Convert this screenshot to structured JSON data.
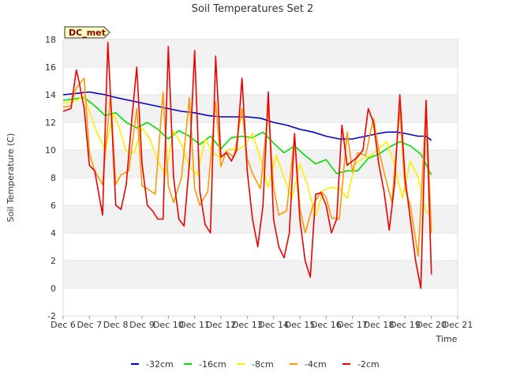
{
  "chart_data": {
    "type": "line",
    "title": "Soil Temperatures Set 2",
    "xlabel": "Time",
    "ylabel": "Soil Temperature (C)",
    "badge": "DC_met",
    "xlim": [
      6,
      21
    ],
    "ylim": [
      -2,
      18
    ],
    "x_ticks": [
      6,
      7,
      8,
      9,
      10,
      11,
      12,
      13,
      14,
      15,
      16,
      17,
      18,
      19,
      20,
      21
    ],
    "x_tick_labels": [
      "Dec 6",
      "Dec 7",
      "Dec 8",
      "Dec 9",
      "Dec 10",
      "Dec 11",
      "Dec 12",
      "Dec 13",
      "Dec 14",
      "Dec 15",
      "Dec 16",
      "Dec 17",
      "Dec 18",
      "Dec 19",
      "Dec 20",
      "Dec 21"
    ],
    "y_ticks": [
      -2,
      0,
      2,
      4,
      6,
      8,
      10,
      12,
      14,
      16,
      18
    ],
    "y_tick_labels": [
      "-2",
      "0",
      "2",
      "4",
      "6",
      "8",
      "10",
      "12",
      "14",
      "16",
      "18"
    ],
    "grid": "horizontal bands",
    "legend_position": "bottom",
    "series": [
      {
        "name": "-32cm",
        "color": "#0000cc",
        "x": [
          6.0,
          6.5,
          7.0,
          7.3,
          7.6,
          8.0,
          8.5,
          9.0,
          9.5,
          10.0,
          10.5,
          11.0,
          11.5,
          12.0,
          12.5,
          13.0,
          13.5,
          14.0,
          14.5,
          15.0,
          15.5,
          16.0,
          16.5,
          17.0,
          17.5,
          18.0,
          18.3,
          18.7,
          19.0,
          19.5,
          19.8,
          20.0
        ],
        "y": [
          14.0,
          14.1,
          14.2,
          14.1,
          14.0,
          13.8,
          13.6,
          13.4,
          13.2,
          13.0,
          12.8,
          12.7,
          12.5,
          12.4,
          12.4,
          12.4,
          12.3,
          12.0,
          11.8,
          11.5,
          11.3,
          11.0,
          10.8,
          10.8,
          11.0,
          11.2,
          11.3,
          11.3,
          11.2,
          11.0,
          11.0,
          10.7
        ]
      },
      {
        "name": "-16cm",
        "color": "#00e000",
        "x": [
          6.0,
          6.4,
          6.8,
          7.2,
          7.6,
          8.0,
          8.4,
          8.8,
          9.2,
          9.6,
          10.0,
          10.4,
          10.8,
          11.2,
          11.6,
          12.0,
          12.4,
          12.8,
          13.2,
          13.6,
          14.0,
          14.4,
          14.8,
          15.2,
          15.6,
          16.0,
          16.4,
          16.8,
          17.2,
          17.6,
          18.0,
          18.4,
          18.8,
          19.2,
          19.6,
          20.0
        ],
        "y": [
          13.6,
          13.7,
          13.8,
          13.2,
          12.5,
          12.7,
          12.0,
          11.6,
          12.0,
          11.5,
          10.8,
          11.4,
          11.0,
          10.4,
          11.0,
          10.1,
          10.9,
          11.0,
          10.9,
          11.3,
          10.5,
          9.8,
          10.3,
          9.6,
          9.0,
          9.3,
          8.3,
          8.5,
          8.5,
          9.4,
          9.7,
          10.2,
          10.6,
          10.3,
          9.7,
          8.2
        ]
      },
      {
        "name": "-8cm",
        "color": "#ffee00",
        "x": [
          6.0,
          6.4,
          6.8,
          7.0,
          7.3,
          7.6,
          7.9,
          8.1,
          8.4,
          8.7,
          9.0,
          9.3,
          9.6,
          9.9,
          10.2,
          10.5,
          10.8,
          11.1,
          11.4,
          11.7,
          12.0,
          12.3,
          12.6,
          12.9,
          13.2,
          13.5,
          13.8,
          14.1,
          14.4,
          14.7,
          15.0,
          15.3,
          15.6,
          15.9,
          16.2,
          16.5,
          16.8,
          17.1,
          17.4,
          17.7,
          18.0,
          18.3,
          18.6,
          18.9,
          19.2,
          19.5,
          19.8,
          20.0
        ],
        "y": [
          13.4,
          13.5,
          13.9,
          12.8,
          11.2,
          10.0,
          12.6,
          11.8,
          9.9,
          9.8,
          11.6,
          10.8,
          9.2,
          8.2,
          11.4,
          10.4,
          8.8,
          8.2,
          10.8,
          9.8,
          9.4,
          10.1,
          10.0,
          10.3,
          11.2,
          9.4,
          7.3,
          9.6,
          8.0,
          6.5,
          9.0,
          7.4,
          5.2,
          7.1,
          7.3,
          7.2,
          6.5,
          9.0,
          9.4,
          9.6,
          10.1,
          10.6,
          8.9,
          6.5,
          9.2,
          8.0,
          5.5,
          5.3
        ]
      },
      {
        "name": "-4cm",
        "color": "#ff9900",
        "x": [
          6.0,
          6.3,
          6.5,
          6.8,
          7.0,
          7.2,
          7.5,
          7.8,
          8.0,
          8.2,
          8.5,
          8.8,
          9.0,
          9.2,
          9.5,
          9.8,
          10.0,
          10.2,
          10.5,
          10.8,
          11.0,
          11.2,
          11.5,
          11.8,
          12.0,
          12.2,
          12.5,
          12.8,
          13.0,
          13.2,
          13.5,
          13.8,
          14.0,
          14.2,
          14.5,
          14.8,
          15.0,
          15.2,
          15.5,
          15.8,
          16.0,
          16.2,
          16.5,
          16.8,
          17.0,
          17.2,
          17.5,
          17.8,
          18.0,
          18.2,
          18.5,
          18.8,
          19.0,
          19.2,
          19.5,
          19.8,
          20.0
        ],
        "y": [
          13.1,
          13.2,
          14.5,
          15.2,
          9.8,
          8.5,
          7.5,
          14.0,
          7.5,
          8.2,
          8.5,
          13.0,
          7.4,
          7.2,
          6.8,
          14.2,
          7.4,
          6.2,
          8.0,
          13.8,
          7.2,
          6.0,
          7.0,
          13.5,
          8.8,
          9.9,
          9.5,
          13.0,
          9.4,
          8.3,
          7.2,
          13.0,
          7.3,
          5.3,
          5.6,
          11.0,
          5.8,
          4.0,
          6.0,
          7.0,
          6.6,
          5.1,
          5.0,
          11.3,
          8.4,
          9.8,
          9.6,
          12.3,
          10.0,
          8.4,
          6.2,
          13.0,
          7.2,
          6.0,
          2.3,
          13.4,
          4.0
        ]
      },
      {
        "name": "-2cm",
        "color": "#ee0000",
        "x": [
          6.0,
          6.3,
          6.5,
          6.6,
          6.8,
          7.0,
          7.2,
          7.5,
          7.7,
          7.8,
          8.0,
          8.2,
          8.4,
          8.6,
          8.8,
          9.0,
          9.2,
          9.4,
          9.6,
          9.8,
          10.0,
          10.2,
          10.4,
          10.6,
          10.8,
          11.0,
          11.2,
          11.4,
          11.6,
          11.8,
          12.0,
          12.2,
          12.4,
          12.6,
          12.8,
          13.0,
          13.2,
          13.4,
          13.6,
          13.8,
          14.0,
          14.2,
          14.4,
          14.6,
          14.8,
          15.0,
          15.2,
          15.4,
          15.6,
          15.8,
          16.0,
          16.2,
          16.4,
          16.6,
          16.8,
          17.0,
          17.2,
          17.4,
          17.6,
          17.8,
          18.0,
          18.2,
          18.4,
          18.6,
          18.8,
          19.0,
          19.2,
          19.4,
          19.6,
          19.8,
          20.0
        ],
        "y": [
          12.8,
          13.0,
          15.8,
          15.0,
          13.0,
          8.9,
          8.5,
          5.3,
          17.8,
          14.0,
          6.0,
          5.7,
          7.5,
          12.0,
          16.0,
          9.0,
          6.0,
          5.6,
          5.0,
          5.0,
          17.5,
          8.0,
          5.0,
          4.5,
          9.0,
          17.2,
          7.0,
          4.6,
          4.0,
          16.8,
          9.5,
          9.8,
          9.2,
          10.0,
          15.2,
          8.5,
          5.0,
          3.0,
          6.0,
          14.2,
          5.0,
          3.0,
          2.2,
          4.0,
          11.2,
          5.0,
          2.0,
          0.8,
          6.8,
          6.9,
          6.0,
          4.0,
          5.0,
          11.8,
          8.9,
          9.2,
          9.5,
          10.0,
          13.0,
          12.0,
          9.0,
          7.0,
          4.2,
          7.5,
          14.0,
          8.0,
          5.0,
          2.0,
          0.0,
          13.6,
          1.0
        ]
      }
    ]
  }
}
